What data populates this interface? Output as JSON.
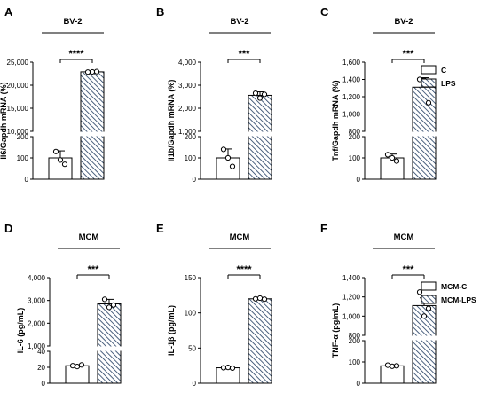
{
  "colors": {
    "control_fill": "#ffffff",
    "treated_hatch": "#1f3a5f",
    "stroke": "#000000"
  },
  "legends": [
    {
      "items": [
        {
          "label": "C",
          "style": "open"
        },
        {
          "label": "LPS",
          "style": "hatched"
        }
      ]
    },
    {
      "items": [
        {
          "label": "MCM-C",
          "style": "open"
        },
        {
          "label": "MCM-LPS",
          "style": "hatched"
        }
      ]
    }
  ],
  "chart_data": [
    {
      "panel": "A",
      "type": "bar",
      "group_label": "BV-2",
      "ylabel": "Il6/Gapdh mRNA (%)",
      "categories": [
        "C",
        "LPS"
      ],
      "values": [
        100,
        22900
      ],
      "errors": [
        33,
        60
      ],
      "points": [
        [
          130,
          90,
          70
        ],
        [
          22850,
          22900,
          22950
        ]
      ],
      "y_break": {
        "lower": [
          0,
          200
        ],
        "upper": [
          10000,
          25000
        ]
      },
      "lower_ticks": [
        0,
        100,
        200
      ],
      "upper_ticks": [
        10000,
        15000,
        20000,
        25000
      ],
      "lower_tick_labels": [
        "0",
        "100",
        "200"
      ],
      "upper_tick_labels": [
        "10,000",
        "15,000",
        "20,000",
        "25,000"
      ],
      "significance": "****"
    },
    {
      "panel": "B",
      "type": "bar",
      "group_label": "BV-2",
      "ylabel": "Il1b/Gapdh mRNA (%)",
      "categories": [
        "C",
        "LPS"
      ],
      "values": [
        100,
        2560
      ],
      "errors": [
        42,
        150
      ],
      "points": [
        [
          140,
          100,
          60
        ],
        [
          2650,
          2440,
          2600
        ]
      ],
      "y_break": {
        "lower": [
          0,
          200
        ],
        "upper": [
          1000,
          4000
        ]
      },
      "lower_ticks": [
        0,
        100,
        200
      ],
      "upper_ticks": [
        1000,
        2000,
        3000,
        4000
      ],
      "lower_tick_labels": [
        "0",
        "100",
        "200"
      ],
      "upper_tick_labels": [
        "1,000",
        "2,000",
        "3,000",
        "4,000"
      ],
      "significance": "***"
    },
    {
      "panel": "C",
      "type": "bar",
      "group_label": "BV-2",
      "ylabel": "Tnf/Gapdh mRNA (%)",
      "categories": [
        "C",
        "LPS"
      ],
      "values": [
        100,
        1310
      ],
      "errors": [
        18,
        110
      ],
      "points": [
        [
          115,
          100,
          85
        ],
        [
          1400,
          1390,
          1130
        ]
      ],
      "y_break": {
        "lower": [
          0,
          200
        ],
        "upper": [
          800,
          1600
        ]
      },
      "lower_ticks": [
        0,
        100,
        200
      ],
      "upper_ticks": [
        800,
        1000,
        1200,
        1400,
        1600
      ],
      "lower_tick_labels": [
        "0",
        "100",
        "200"
      ],
      "upper_tick_labels": [
        "800",
        "1,000",
        "1,200",
        "1,400",
        "1,600"
      ],
      "significance": "***"
    },
    {
      "panel": "D",
      "type": "bar",
      "group_label": "MCM",
      "ylabel": "IL-6 (pg/mL)",
      "categories": [
        "MCM-C",
        "MCM-LPS"
      ],
      "values": [
        22,
        2850
      ],
      "errors": [
        1,
        200
      ],
      "points": [
        [
          22,
          21,
          23
        ],
        [
          3050,
          2700,
          2800
        ]
      ],
      "y_break": {
        "lower": [
          0,
          40
        ],
        "upper": [
          1000,
          4000
        ]
      },
      "lower_ticks": [
        0,
        20,
        40
      ],
      "upper_ticks": [
        1000,
        2000,
        3000,
        4000
      ],
      "lower_tick_labels": [
        "0",
        "20",
        "40"
      ],
      "upper_tick_labels": [
        "1,000",
        "2,000",
        "3,000",
        "4,000"
      ],
      "significance": "***"
    },
    {
      "panel": "E",
      "type": "bar",
      "group_label": "MCM",
      "ylabel": "IL-1β (pg/mL)",
      "categories": [
        "MCM-C",
        "MCM-LPS"
      ],
      "values": [
        22,
        120
      ],
      "errors": [
        0.5,
        1
      ],
      "points": [
        [
          22,
          22.5,
          21.5
        ],
        [
          120,
          121,
          119.5
        ]
      ],
      "y_range": [
        0,
        150
      ],
      "ticks": [
        0,
        50,
        100,
        150
      ],
      "tick_labels": [
        "0",
        "50",
        "100",
        "150"
      ],
      "significance": "****"
    },
    {
      "panel": "F",
      "type": "bar",
      "group_label": "MCM",
      "ylabel": "TNF-α (pg/mL)",
      "categories": [
        "MCM-C",
        "MCM-LPS"
      ],
      "values": [
        82,
        1110
      ],
      "errors": [
        4,
        80
      ],
      "points": [
        [
          85,
          80,
          82
        ],
        [
          1250,
          1000,
          1080
        ]
      ],
      "y_break": {
        "lower": [
          0,
          200
        ],
        "upper": [
          800,
          1400
        ]
      },
      "lower_ticks": [
        0,
        100,
        200
      ],
      "upper_ticks": [
        800,
        1000,
        1200,
        1400
      ],
      "lower_tick_labels": [
        "0",
        "100",
        "200"
      ],
      "upper_tick_labels": [
        "800",
        "1,000",
        "1,200",
        "1,400"
      ],
      "significance": "***"
    }
  ]
}
